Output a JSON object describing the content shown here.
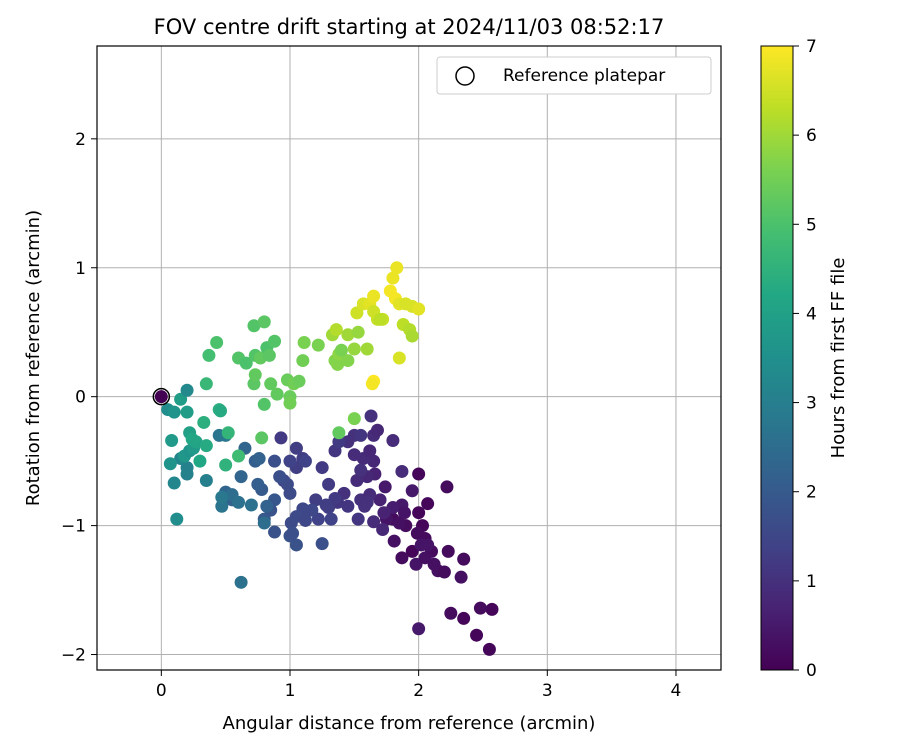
{
  "chart_data": {
    "type": "scatter",
    "title": "FOV centre drift starting at 2024/11/03 08:52:17",
    "xlabel": "Angular distance from reference (arcmin)",
    "ylabel": "Rotation from reference (arcmin)",
    "xlim": [
      -0.5,
      4.35
    ],
    "ylim": [
      -2.12,
      2.72
    ],
    "xticks": [
      0,
      1,
      2,
      3,
      4
    ],
    "yticks": [
      -2,
      -1,
      0,
      1,
      2
    ],
    "xtick_labels": [
      "0",
      "1",
      "2",
      "3",
      "4"
    ],
    "ytick_labels": [
      "−2",
      "−1",
      "0",
      "1",
      "2"
    ],
    "grid": true,
    "legend_position": "upper right",
    "legend": [
      {
        "label": "Reference platepar",
        "marker": "open-circle"
      }
    ],
    "reference_point": {
      "x": 0,
      "y": 0
    },
    "colorbar": {
      "label": "Hours from first FF file",
      "range": [
        0,
        7
      ],
      "ticks": [
        0,
        1,
        2,
        3,
        4,
        5,
        6,
        7
      ],
      "colormap": "viridis"
    },
    "series": [
      {
        "columns": [
          "x",
          "y",
          "hours"
        ],
        "points": [
          [
            2.0,
            -0.6,
            0.1
          ],
          [
            2.03,
            -1.0,
            0.1
          ],
          [
            2.22,
            -0.7,
            0.2
          ],
          [
            2.35,
            -1.26,
            0.2
          ],
          [
            2.07,
            -0.83,
            0.1
          ],
          [
            2.57,
            -1.65,
            0.1
          ],
          [
            2.48,
            -1.64,
            0.2
          ],
          [
            2.55,
            -1.96,
            0.1
          ],
          [
            2.35,
            -1.72,
            0.1
          ],
          [
            2.45,
            -1.85,
            0.1
          ],
          [
            2.25,
            -1.68,
            0.2
          ],
          [
            2.33,
            -1.4,
            0.3
          ],
          [
            2.23,
            -1.2,
            0.2
          ],
          [
            2.05,
            -1.1,
            0.2
          ],
          [
            1.99,
            -1.06,
            0.2
          ],
          [
            1.95,
            -1.2,
            0.1
          ],
          [
            1.87,
            -1.25,
            0.2
          ],
          [
            1.81,
            -1.12,
            0.3
          ],
          [
            2.1,
            -1.2,
            0.2
          ],
          [
            2.15,
            -1.35,
            0.3
          ],
          [
            2.12,
            -1.3,
            0.3
          ],
          [
            2.2,
            -1.36,
            0.2
          ],
          [
            2.0,
            -0.9,
            0.1
          ],
          [
            1.9,
            -1.0,
            0.2
          ],
          [
            1.8,
            -0.95,
            0.2
          ],
          [
            2.07,
            -1.15,
            0.4
          ],
          [
            1.98,
            -1.3,
            0.4
          ],
          [
            2.05,
            -1.25,
            0.3
          ],
          [
            2.0,
            -1.8,
            0.5
          ],
          [
            2.02,
            -1.15,
            0.4
          ],
          [
            1.95,
            -0.73,
            0.5
          ],
          [
            1.87,
            -0.84,
            0.5
          ],
          [
            1.8,
            -0.86,
            0.6
          ],
          [
            1.7,
            -0.8,
            0.7
          ],
          [
            1.66,
            -0.6,
            0.7
          ],
          [
            1.75,
            -0.95,
            0.4
          ],
          [
            1.85,
            -0.98,
            0.3
          ],
          [
            1.89,
            -0.9,
            0.4
          ],
          [
            1.8,
            -0.34,
            0.9
          ],
          [
            1.87,
            -0.58,
            0.9
          ],
          [
            1.74,
            -0.7,
            0.5
          ],
          [
            1.65,
            -0.5,
            0.8
          ],
          [
            1.57,
            -0.48,
            0.9
          ],
          [
            1.6,
            -0.62,
            0.8
          ],
          [
            1.52,
            -0.65,
            0.9
          ],
          [
            1.55,
            -0.57,
            1.0
          ],
          [
            1.65,
            -0.3,
            0.9
          ],
          [
            1.62,
            -0.42,
            0.8
          ],
          [
            1.68,
            -0.26,
            0.8
          ],
          [
            1.63,
            -0.15,
            1.0
          ],
          [
            1.5,
            -0.3,
            1.0
          ],
          [
            1.55,
            -0.3,
            1.1
          ],
          [
            1.45,
            -0.35,
            1.0
          ],
          [
            1.5,
            -0.45,
            0.9
          ],
          [
            1.35,
            -0.42,
            1.1
          ],
          [
            1.38,
            -0.35,
            1.2
          ],
          [
            1.25,
            -0.55,
            1.2
          ],
          [
            1.3,
            -0.68,
            1.2
          ],
          [
            1.37,
            -0.82,
            1.1
          ],
          [
            1.42,
            -0.75,
            1.0
          ],
          [
            1.45,
            -0.85,
            1.1
          ],
          [
            1.55,
            -0.8,
            1.0
          ],
          [
            1.62,
            -0.76,
            0.9
          ],
          [
            1.6,
            -0.82,
            1.0
          ],
          [
            1.53,
            -0.95,
            1.1
          ],
          [
            1.58,
            -0.85,
            1.0
          ],
          [
            1.65,
            -0.97,
            0.9
          ],
          [
            1.73,
            -0.9,
            0.7
          ],
          [
            1.72,
            -1.03,
            0.8
          ],
          [
            1.3,
            -0.86,
            1.3
          ],
          [
            1.35,
            -0.79,
            1.2
          ],
          [
            1.32,
            -0.95,
            1.4
          ],
          [
            1.28,
            -0.84,
            1.3
          ],
          [
            1.22,
            -0.95,
            1.4
          ],
          [
            1.2,
            -0.8,
            1.3
          ],
          [
            1.17,
            -0.88,
            1.5
          ],
          [
            1.1,
            -0.87,
            1.5
          ],
          [
            1.05,
            -0.93,
            1.6
          ],
          [
            1.12,
            -0.96,
            1.5
          ],
          [
            1.01,
            -0.98,
            1.6
          ],
          [
            1.05,
            -0.55,
            1.3
          ],
          [
            1.0,
            -0.5,
            1.4
          ],
          [
            1.1,
            -0.48,
            1.3
          ],
          [
            1.12,
            -0.5,
            1.4
          ],
          [
            0.93,
            -0.32,
            1.2
          ],
          [
            1.05,
            -0.4,
            1.3
          ],
          [
            0.95,
            -0.65,
            1.5
          ],
          [
            0.98,
            -0.68,
            1.6
          ],
          [
            1.0,
            -0.75,
            1.6
          ],
          [
            0.92,
            -0.62,
            1.7
          ],
          [
            0.88,
            -0.5,
            1.7
          ],
          [
            1.25,
            -1.14,
            1.7
          ],
          [
            1.05,
            -1.15,
            1.8
          ],
          [
            1.0,
            -1.08,
            1.8
          ],
          [
            1.02,
            -1.06,
            1.7
          ],
          [
            0.88,
            -1.05,
            1.8
          ],
          [
            0.85,
            -0.88,
            1.8
          ],
          [
            0.88,
            -0.8,
            1.9
          ],
          [
            0.8,
            -0.95,
            2.0
          ],
          [
            0.78,
            -0.72,
            2.0
          ],
          [
            0.75,
            -0.68,
            2.1
          ],
          [
            0.82,
            -0.85,
            2.2
          ],
          [
            0.73,
            -0.5,
            2.1
          ],
          [
            0.76,
            -0.48,
            2.2
          ],
          [
            0.65,
            -0.4,
            2.3
          ],
          [
            0.62,
            -0.62,
            2.3
          ],
          [
            0.55,
            -0.8,
            2.2
          ],
          [
            0.5,
            -0.74,
            2.3
          ],
          [
            0.55,
            -0.76,
            2.5
          ],
          [
            0.6,
            -0.82,
            2.6
          ],
          [
            0.7,
            -0.84,
            2.6
          ],
          [
            0.8,
            -0.98,
            2.5
          ],
          [
            0.62,
            -1.44,
            2.6
          ],
          [
            0.47,
            -0.85,
            2.7
          ],
          [
            0.47,
            -0.78,
            2.8
          ],
          [
            0.45,
            -0.3,
            2.7
          ],
          [
            0.5,
            -0.3,
            2.8
          ],
          [
            0.35,
            -0.65,
            3.0
          ],
          [
            0.2,
            -0.55,
            3.1
          ],
          [
            0.15,
            -0.48,
            3.2
          ],
          [
            0.2,
            -0.6,
            3.1
          ],
          [
            0.1,
            -0.67,
            3.2
          ],
          [
            0.12,
            -0.95,
            3.4
          ],
          [
            0.07,
            -0.52,
            3.6
          ],
          [
            0.18,
            -0.46,
            3.7
          ],
          [
            0.22,
            -0.42,
            3.6
          ],
          [
            0.25,
            -0.4,
            3.8
          ],
          [
            0.08,
            -0.34,
            3.8
          ],
          [
            0.05,
            -0.1,
            3.4
          ],
          [
            0.1,
            -0.12,
            3.6
          ],
          [
            0.15,
            -0.02,
            3.9
          ],
          [
            0.2,
            0.05,
            3.3
          ],
          [
            0.2,
            -0.12,
            3.9
          ],
          [
            0.22,
            -0.28,
            4.0
          ],
          [
            0.24,
            -0.33,
            4.2
          ],
          [
            0.27,
            -0.35,
            4.1
          ],
          [
            0.3,
            -0.5,
            4.2
          ],
          [
            0.35,
            -0.38,
            4.3
          ],
          [
            0.33,
            -0.2,
            4.4
          ],
          [
            0.45,
            -0.1,
            4.4
          ],
          [
            0.46,
            -0.11,
            4.3
          ],
          [
            0.5,
            -0.53,
            4.5
          ],
          [
            0.52,
            -0.28,
            4.6
          ],
          [
            0.6,
            -0.46,
            4.8
          ],
          [
            0.35,
            0.1,
            4.7
          ],
          [
            0.37,
            0.32,
            4.9
          ],
          [
            0.43,
            0.42,
            5.0
          ],
          [
            0.6,
            0.3,
            5.1
          ],
          [
            0.66,
            0.26,
            5.0
          ],
          [
            0.73,
            0.32,
            5.1
          ],
          [
            0.77,
            0.3,
            5.3
          ],
          [
            0.72,
            0.1,
            5.2
          ],
          [
            0.73,
            0.17,
            5.3
          ],
          [
            0.8,
            -0.06,
            5.1
          ],
          [
            0.85,
            0.1,
            5.3
          ],
          [
            0.82,
            0.38,
            5.0
          ],
          [
            0.88,
            0.43,
            5.1
          ],
          [
            0.84,
            0.32,
            5.2
          ],
          [
            0.72,
            0.55,
            5.1
          ],
          [
            0.8,
            0.58,
            5.2
          ],
          [
            0.9,
            0.02,
            5.3
          ],
          [
            0.98,
            0.13,
            5.4
          ],
          [
            1.0,
            0.0,
            5.4
          ],
          [
            1.0,
            -0.05,
            5.5
          ],
          [
            1.03,
            0.1,
            5.5
          ],
          [
            1.07,
            0.12,
            5.4
          ],
          [
            1.1,
            0.28,
            5.5
          ],
          [
            1.11,
            0.42,
            5.6
          ],
          [
            1.22,
            0.4,
            5.6
          ],
          [
            0.78,
            -0.32,
            5.2
          ],
          [
            1.35,
            0.28,
            5.7
          ],
          [
            1.37,
            0.25,
            5.7
          ],
          [
            1.38,
            0.33,
            5.8
          ],
          [
            1.4,
            0.36,
            5.6
          ],
          [
            1.45,
            0.28,
            5.7
          ],
          [
            1.5,
            0.37,
            5.9
          ],
          [
            1.45,
            0.48,
            6.0
          ],
          [
            1.53,
            0.5,
            5.9
          ],
          [
            1.6,
            0.37,
            6.0
          ],
          [
            1.38,
            -0.28,
            5.3
          ],
          [
            1.5,
            -0.17,
            5.6
          ],
          [
            1.33,
            0.48,
            6.0
          ],
          [
            1.36,
            0.52,
            6.2
          ],
          [
            1.52,
            0.65,
            6.5
          ],
          [
            1.57,
            0.72,
            6.6
          ],
          [
            1.62,
            0.72,
            6.7
          ],
          [
            1.65,
            0.78,
            6.8
          ],
          [
            1.68,
            0.6,
            6.4
          ],
          [
            1.72,
            0.6,
            6.4
          ],
          [
            1.65,
            0.66,
            6.5
          ],
          [
            1.78,
            0.82,
            6.9
          ],
          [
            1.8,
            0.92,
            6.8
          ],
          [
            1.83,
            1.0,
            6.8
          ],
          [
            1.82,
            0.76,
            6.9
          ],
          [
            1.85,
            0.72,
            6.7
          ],
          [
            1.9,
            0.72,
            6.6
          ],
          [
            1.95,
            0.7,
            6.6
          ],
          [
            2.0,
            0.68,
            6.7
          ],
          [
            1.88,
            0.56,
            6.3
          ],
          [
            1.93,
            0.52,
            6.2
          ],
          [
            1.95,
            0.47,
            6.1
          ],
          [
            1.85,
            0.3,
            6.6
          ],
          [
            1.65,
            0.12,
            7.0
          ],
          [
            1.64,
            0.1,
            6.9
          ],
          [
            1.7,
            0.6,
            6.3
          ]
        ]
      }
    ]
  }
}
